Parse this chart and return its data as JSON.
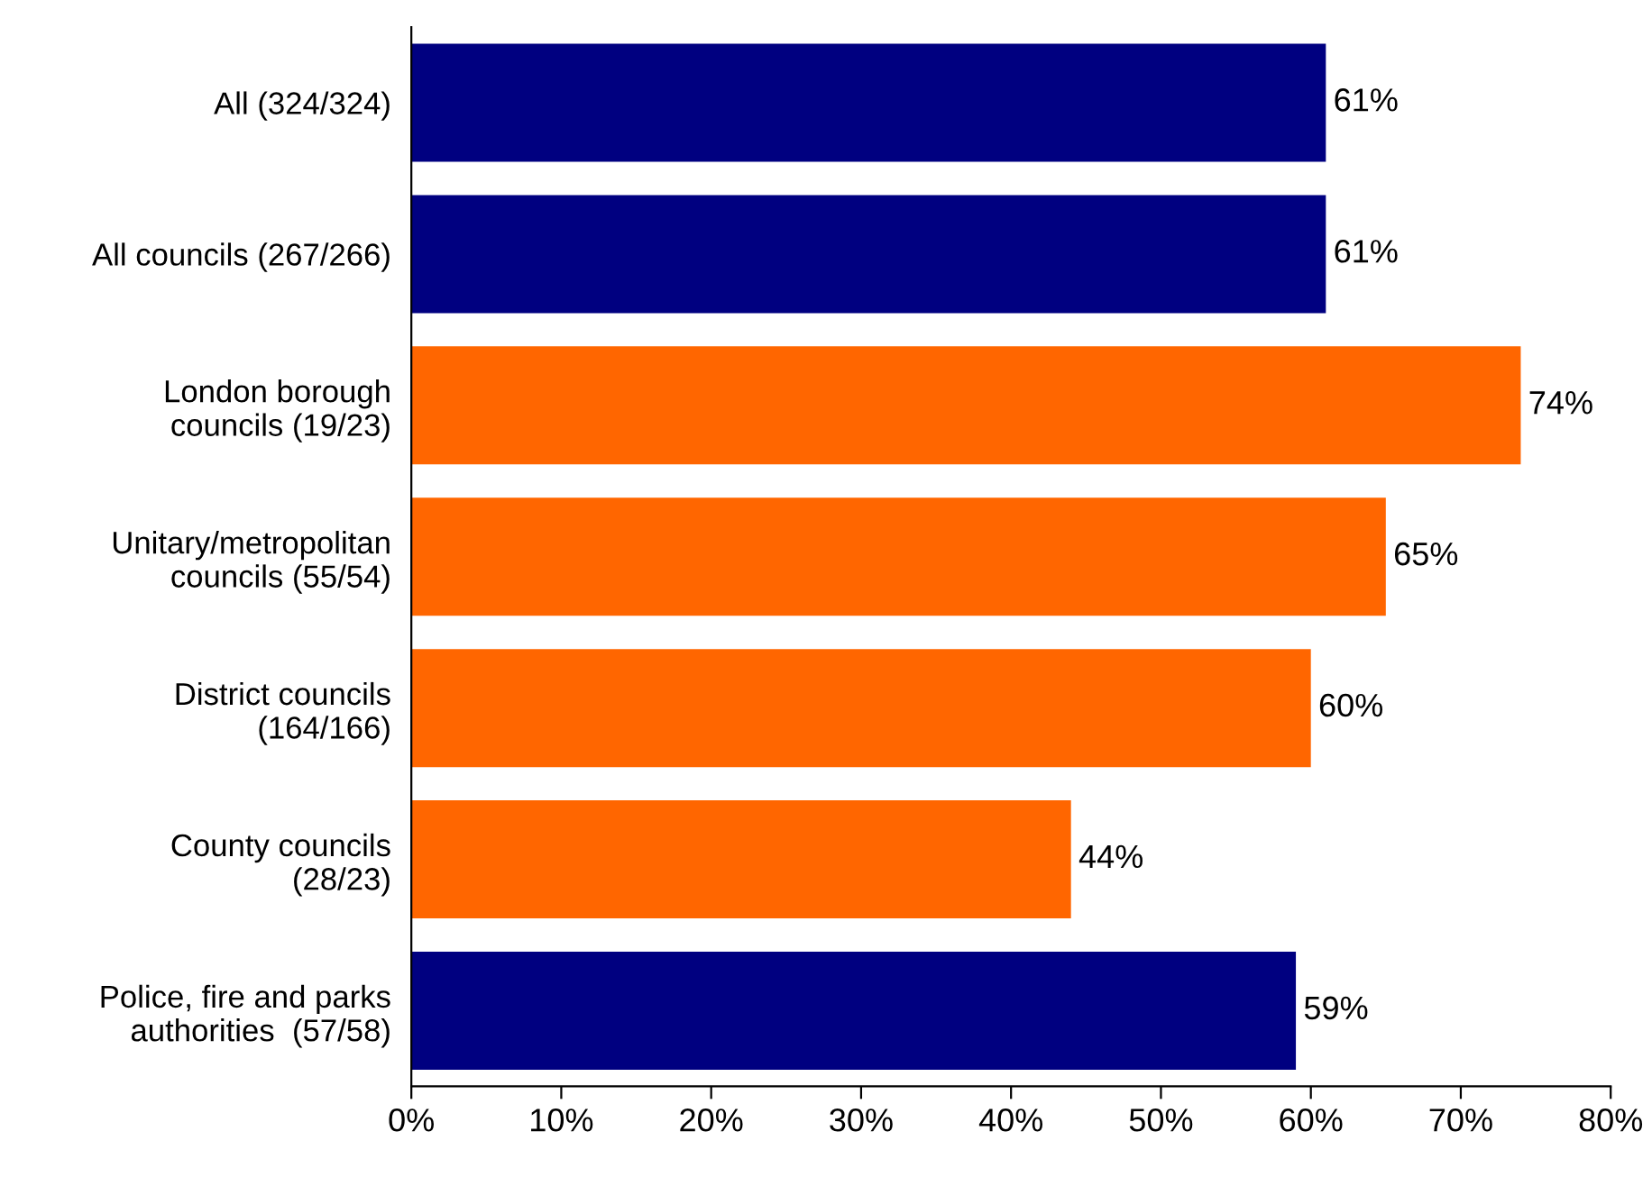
{
  "chart_data": {
    "type": "bar",
    "orientation": "horizontal",
    "categories": [
      "All (324/324)",
      "All councils (267/266)",
      "London borough\ncouncils (19/23)",
      "Unitary/metropolitan\ncouncils (55/54)",
      "District councils\n(164/166)",
      "County councils\n(28/23)",
      "Police, fire and parks\nauthorities  (57/58)"
    ],
    "values": [
      61,
      61,
      74,
      65,
      60,
      44,
      59
    ],
    "colors": [
      "#000080",
      "#000080",
      "#ff6600",
      "#ff6600",
      "#ff6600",
      "#ff6600",
      "#000080"
    ],
    "value_labels": [
      "61%",
      "61%",
      "74%",
      "65%",
      "60%",
      "44%",
      "59%"
    ],
    "xlim": [
      0,
      80
    ],
    "xticks": [
      {
        "value": 0,
        "label": "0%"
      },
      {
        "value": 10,
        "label": "10%"
      },
      {
        "value": 20,
        "label": "20%"
      },
      {
        "value": 30,
        "label": "30%"
      },
      {
        "value": 40,
        "label": "40%"
      },
      {
        "value": 50,
        "label": "50%"
      },
      {
        "value": 60,
        "label": "60%"
      },
      {
        "value": 70,
        "label": "70%"
      },
      {
        "value": 80,
        "label": "80%"
      }
    ],
    "grid": false,
    "legend": false
  }
}
